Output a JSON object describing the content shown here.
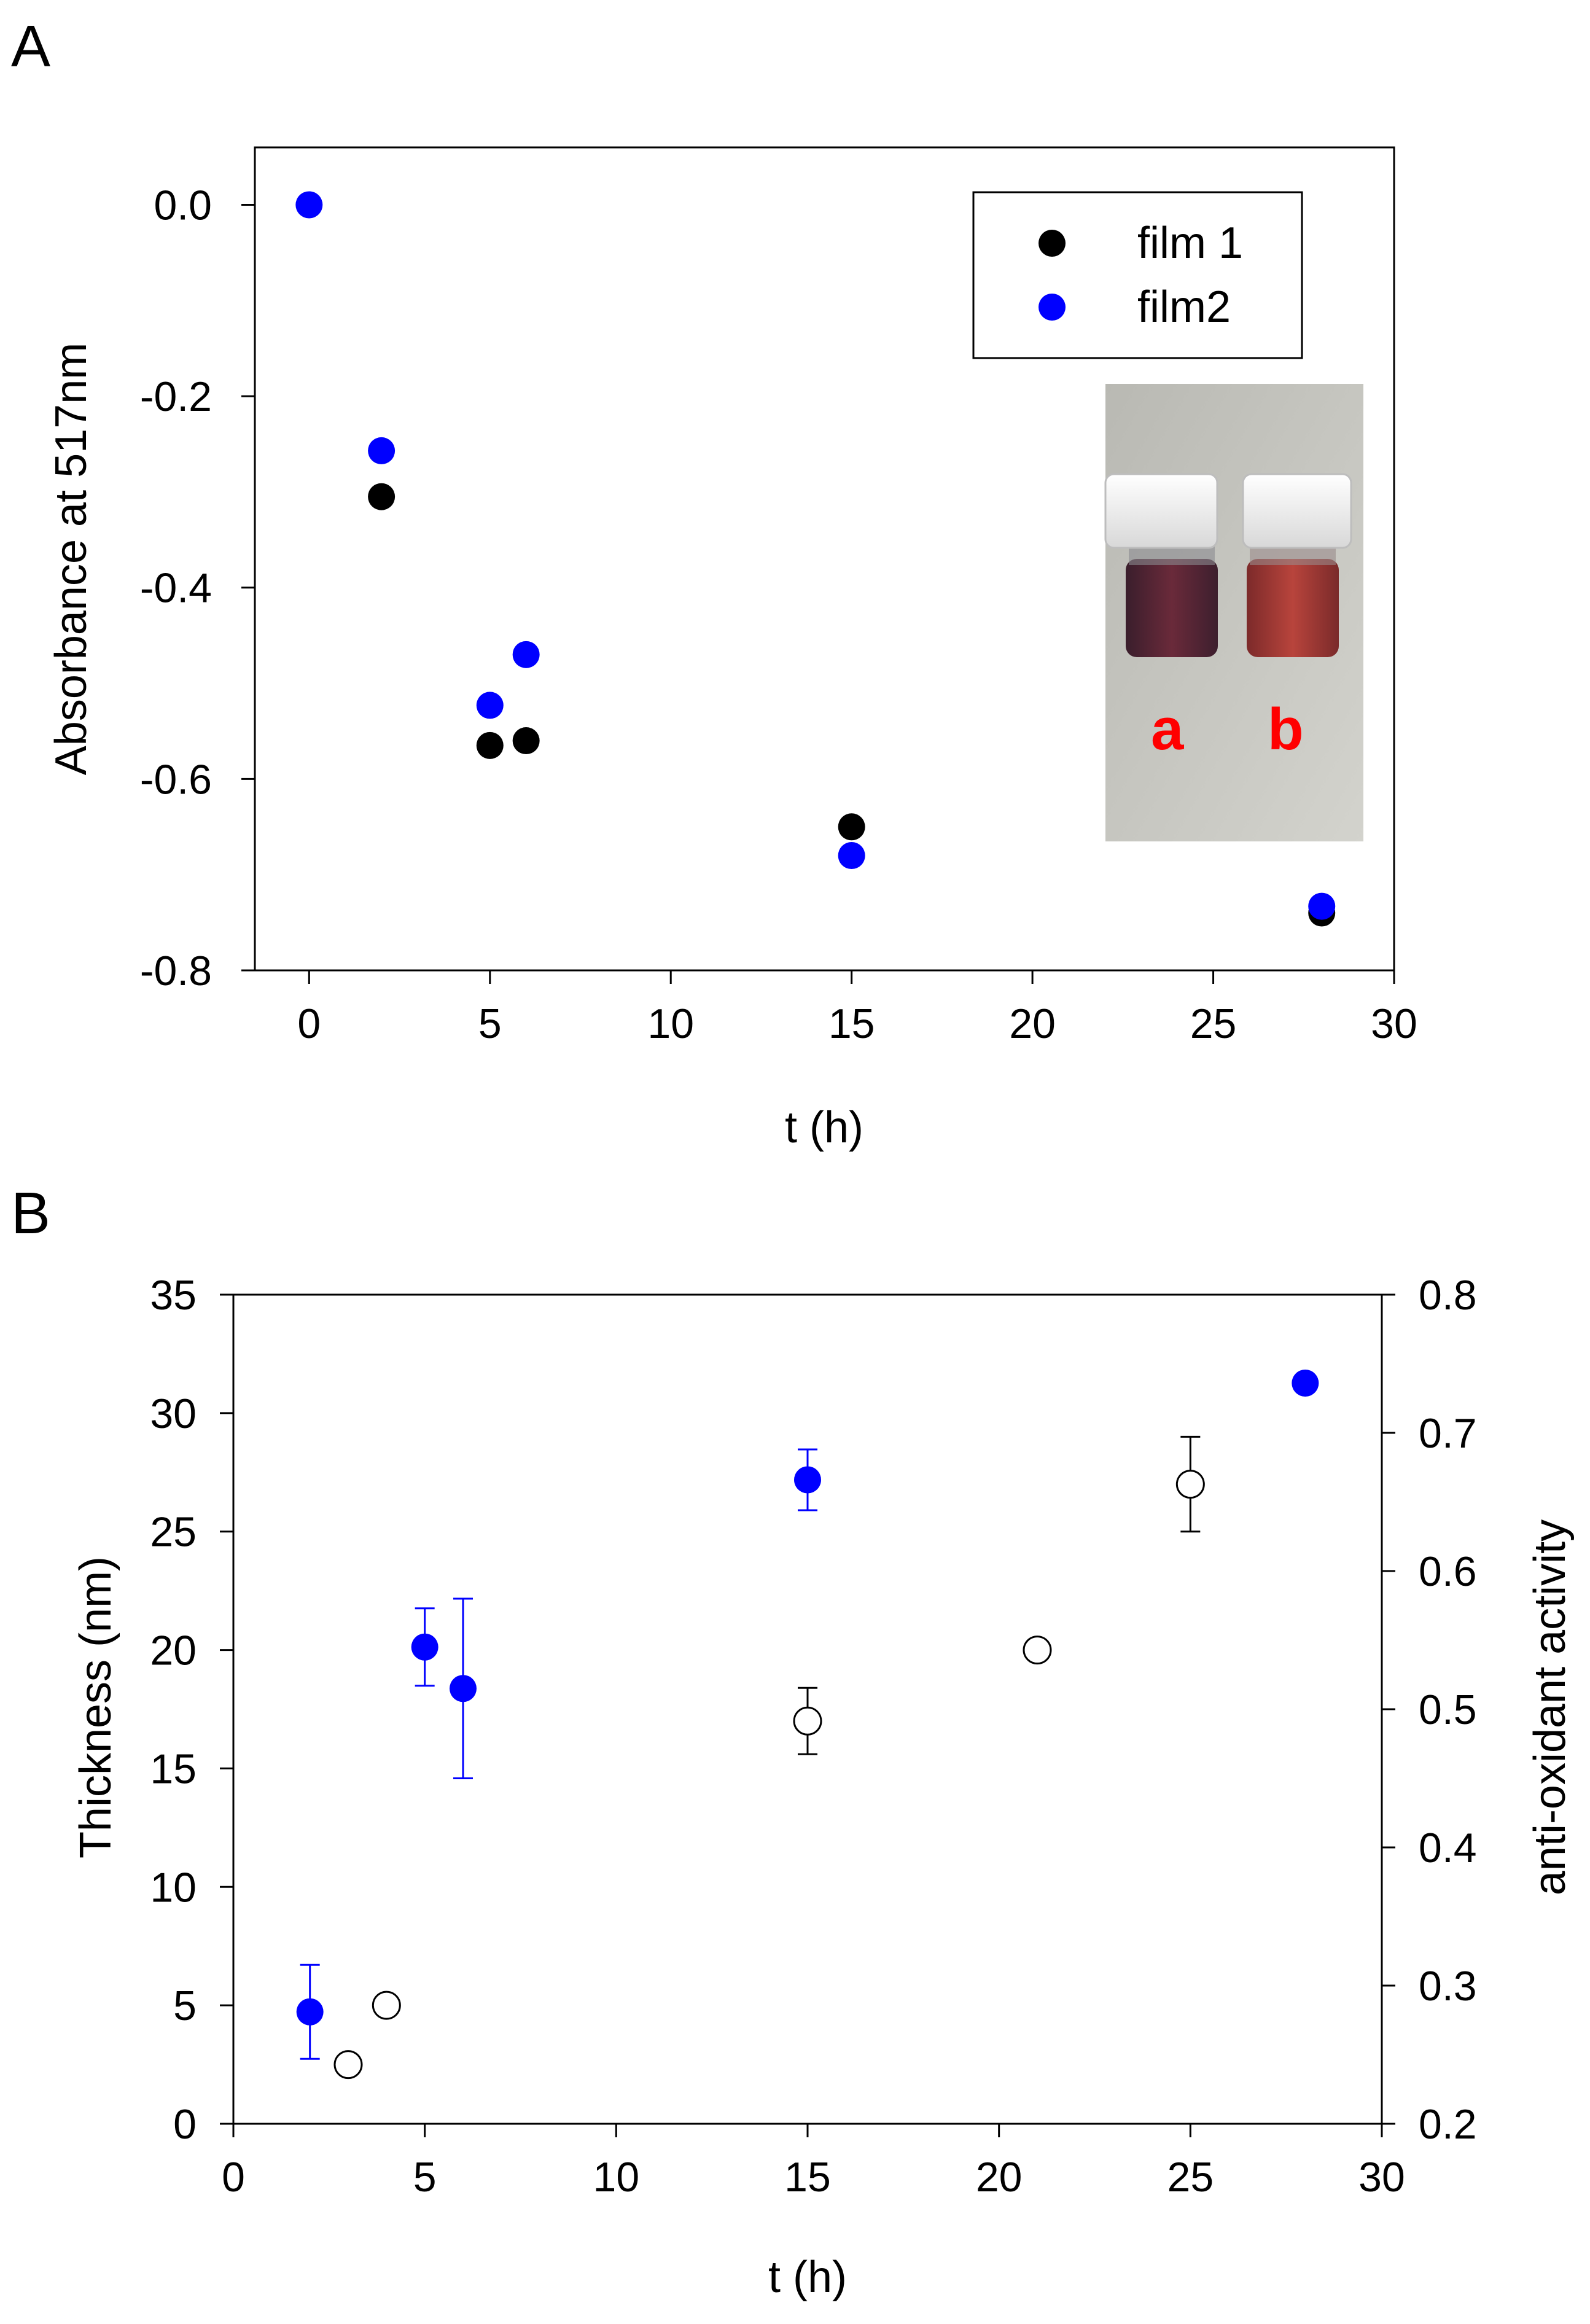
{
  "figure": {
    "panel_a_label": "A",
    "panel_b_label": "B"
  },
  "chart_data": [
    {
      "type": "scatter",
      "panel": "A",
      "title": "",
      "xlabel": "t (h)",
      "ylabel": "Absorbance at 517nm",
      "xlim": [
        -1.5,
        30
      ],
      "ylim": [
        -0.8,
        0.06
      ],
      "xticks": [
        0,
        5,
        10,
        15,
        20,
        25,
        30
      ],
      "xtick_labels": [
        "0",
        "5",
        "10",
        "15",
        "20",
        "25",
        "30"
      ],
      "yticks": [
        0.0,
        -0.2,
        -0.4,
        -0.6,
        -0.8
      ],
      "ytick_labels": [
        "0.0",
        "-0.2",
        "-0.4",
        "-0.6",
        "-0.8"
      ],
      "grid": false,
      "legend_position": "top-right",
      "series": [
        {
          "name": "film 1",
          "color": "#000000",
          "marker": "filled-circle",
          "x": [
            2,
            5,
            6,
            15,
            28
          ],
          "y": [
            -0.305,
            -0.565,
            -0.56,
            -0.65,
            -0.74
          ]
        },
        {
          "name": "film2",
          "color": "#0000ff",
          "marker": "filled-circle",
          "x": [
            0,
            2,
            5,
            6,
            15,
            28
          ],
          "y": [
            0.0,
            -0.257,
            -0.523,
            -0.47,
            -0.68,
            -0.733
          ]
        }
      ],
      "inset": {
        "kind": "photo of two vials",
        "labels": [
          "a",
          "b"
        ]
      }
    },
    {
      "type": "scatter",
      "panel": "B",
      "title": "",
      "xlabel": "t (h)",
      "ylabel": "Thickness (nm)",
      "ylabel_right": "anti-oxidant activity",
      "xlim": [
        0,
        30
      ],
      "ylim": [
        0,
        35
      ],
      "ylim_right": [
        0.2,
        0.8
      ],
      "xticks": [
        0,
        5,
        10,
        15,
        20,
        25,
        30
      ],
      "xtick_labels": [
        "0",
        "5",
        "10",
        "15",
        "20",
        "25",
        "30"
      ],
      "yticks": [
        0,
        5,
        10,
        15,
        20,
        25,
        30,
        35
      ],
      "ytick_labels": [
        "0",
        "5",
        "10",
        "15",
        "20",
        "25",
        "30",
        "35"
      ],
      "yticks_right": [
        0.2,
        0.3,
        0.4,
        0.5,
        0.6,
        0.7,
        0.8
      ],
      "ytick_labels_right": [
        "0.2",
        "0.3",
        "0.4",
        "0.5",
        "0.6",
        "0.7",
        "0.8"
      ],
      "grid": false,
      "series": [
        {
          "name": "Thickness",
          "axis": "left",
          "color": "#000000",
          "marker": "open-circle",
          "x": [
            3,
            4,
            15,
            21,
            25
          ],
          "y": [
            2.5,
            5.0,
            17.0,
            20.0,
            27.0
          ],
          "error": [
            0,
            0,
            1.4,
            0,
            2.0
          ]
        },
        {
          "name": "anti-oxidant activity",
          "axis": "right",
          "color": "#0000ff",
          "marker": "filled-circle",
          "x": [
            2,
            5,
            6,
            15,
            28
          ],
          "y": [
            0.281,
            0.545,
            0.515,
            0.666,
            0.736
          ],
          "error": [
            0.034,
            0.028,
            0.065,
            0.022,
            0
          ]
        }
      ]
    }
  ]
}
